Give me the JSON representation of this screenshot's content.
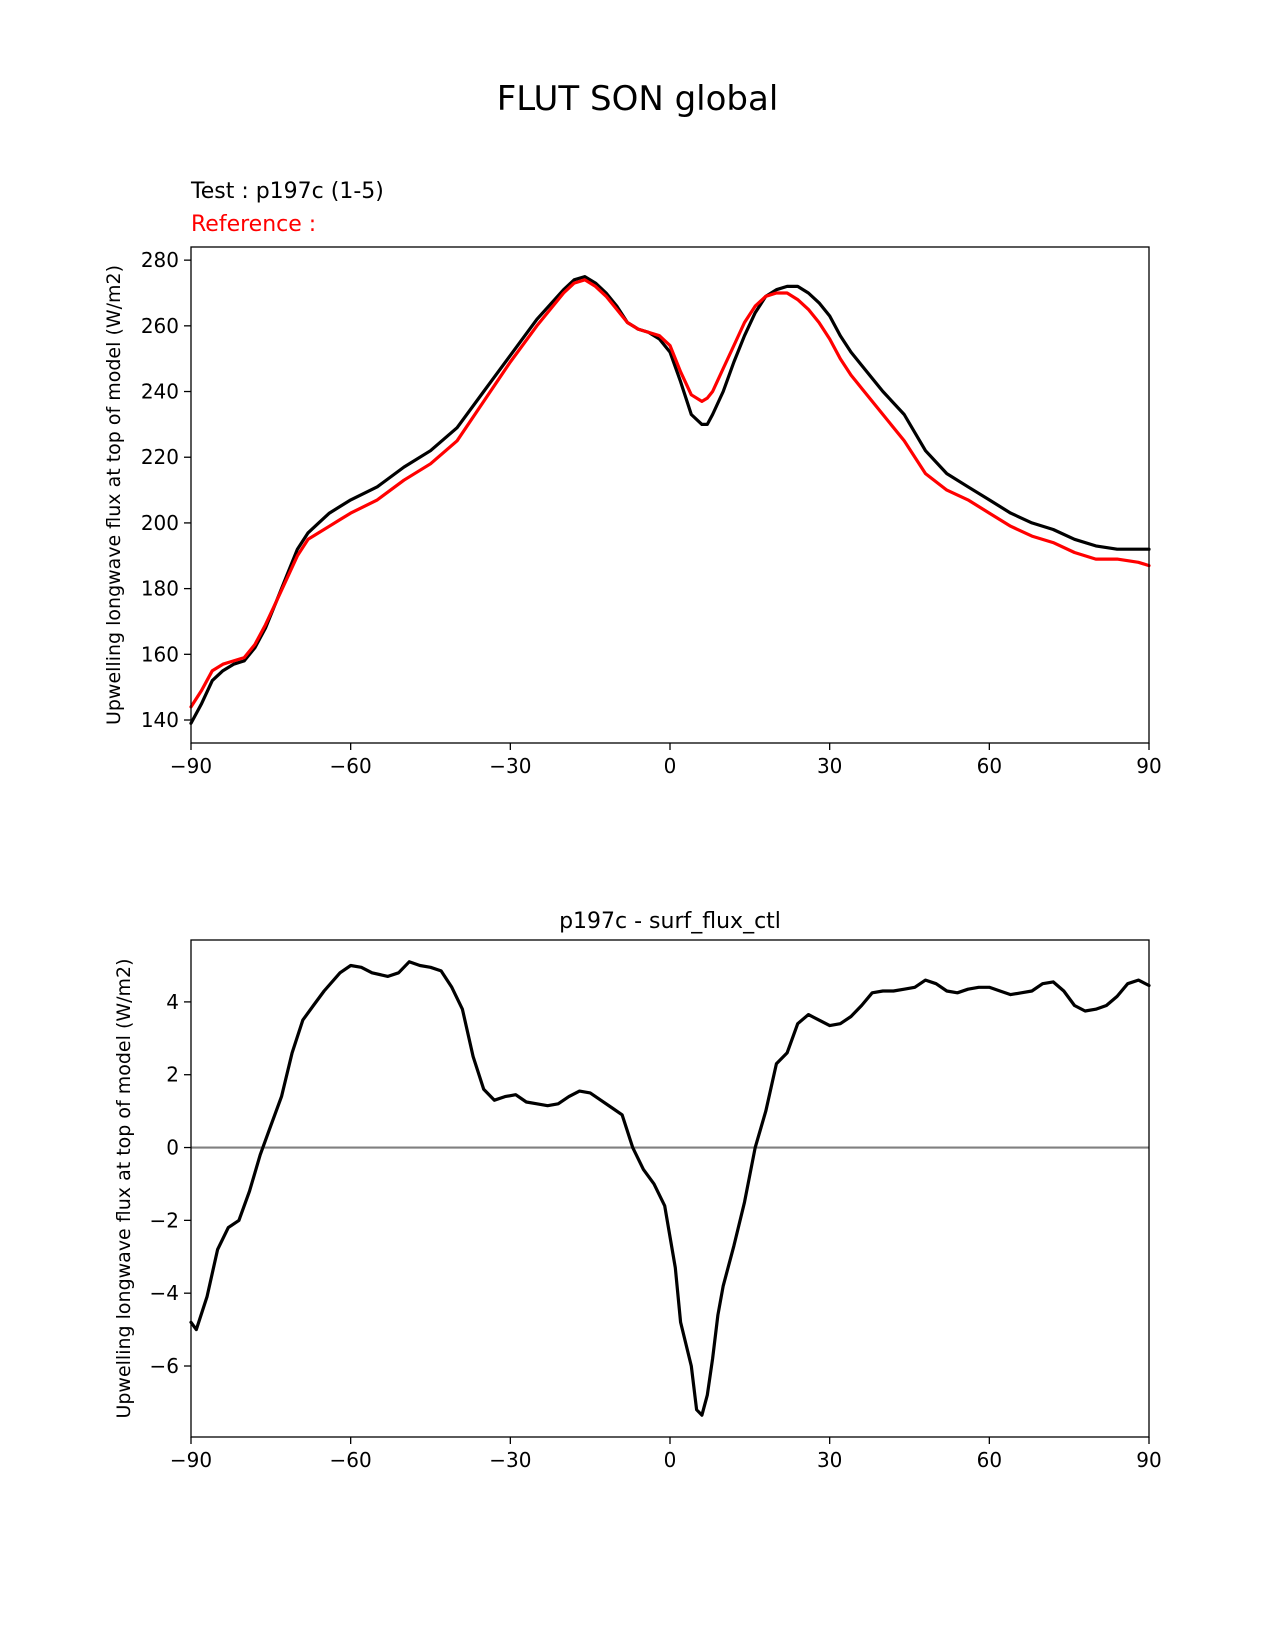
{
  "suptitle": "FLUT SON global",
  "chart_data": [
    {
      "type": "line",
      "title_test": "Test : p197c (1-5)",
      "title_ref": "Reference :",
      "xlabel": "",
      "ylabel": "Upwelling longwave flux at top of model (W/m2)",
      "xlim": [
        -90,
        90
      ],
      "ylim": [
        133,
        284
      ],
      "xticks": [
        -90,
        -60,
        -30,
        0,
        30,
        60,
        90
      ],
      "xtick_labels": [
        "−90",
        "−60",
        "−30",
        "0",
        "30",
        "60",
        "90"
      ],
      "yticks": [
        140,
        160,
        180,
        200,
        220,
        240,
        260,
        280
      ],
      "ytick_labels": [
        "140",
        "160",
        "180",
        "200",
        "220",
        "240",
        "260",
        "280"
      ],
      "grid": false,
      "series": [
        {
          "color": "#000000",
          "x": [
            -90,
            -88,
            -86,
            -84,
            -82,
            -80,
            -78,
            -76,
            -74,
            -72,
            -70,
            -68,
            -66,
            -64,
            -62,
            -60,
            -55,
            -50,
            -45,
            -40,
            -35,
            -30,
            -25,
            -20,
            -18,
            -16,
            -14,
            -12,
            -10,
            -8,
            -6,
            -4,
            -2,
            0,
            2,
            4,
            6,
            7,
            8,
            10,
            12,
            14,
            16,
            18,
            20,
            22,
            24,
            26,
            28,
            30,
            32,
            34,
            36,
            40,
            44,
            48,
            52,
            56,
            60,
            64,
            68,
            72,
            76,
            80,
            84,
            88,
            90
          ],
          "y": [
            139,
            145,
            152,
            155,
            157,
            158,
            162,
            168,
            176,
            184,
            192,
            197,
            200,
            203,
            205,
            207,
            211,
            217,
            222,
            229,
            240,
            251,
            262,
            271,
            274,
            275,
            273,
            270,
            266,
            261,
            259,
            258,
            256,
            252,
            243,
            233,
            230,
            230,
            233,
            240,
            249,
            257,
            264,
            269,
            271,
            272,
            272,
            270,
            267,
            263,
            257,
            252,
            248,
            240,
            233,
            222,
            215,
            211,
            207,
            203,
            200,
            198,
            195,
            193,
            192,
            192,
            192
          ]
        },
        {
          "color": "#ff0000",
          "x": [
            -90,
            -88,
            -86,
            -84,
            -82,
            -80,
            -78,
            -76,
            -74,
            -72,
            -70,
            -68,
            -66,
            -64,
            -62,
            -60,
            -55,
            -50,
            -45,
            -40,
            -35,
            -30,
            -25,
            -20,
            -18,
            -16,
            -14,
            -12,
            -10,
            -8,
            -6,
            -4,
            -2,
            0,
            2,
            4,
            6,
            7,
            8,
            10,
            12,
            14,
            16,
            18,
            20,
            22,
            24,
            26,
            28,
            30,
            32,
            34,
            36,
            40,
            44,
            48,
            52,
            56,
            60,
            64,
            68,
            72,
            76,
            80,
            84,
            88,
            90
          ],
          "y": [
            144,
            149,
            155,
            157,
            158,
            159,
            163,
            169,
            176,
            183,
            190,
            195,
            197,
            199,
            201,
            203,
            207,
            213,
            218,
            225,
            237,
            249,
            260,
            270,
            273,
            274,
            272,
            269,
            265,
            261,
            259,
            258,
            257,
            254,
            246,
            239,
            237,
            238,
            240,
            247,
            254,
            261,
            266,
            269,
            270,
            270,
            268,
            265,
            261,
            256,
            250,
            245,
            241,
            233,
            225,
            215,
            210,
            207,
            203,
            199,
            196,
            194,
            191,
            189,
            189,
            188,
            187
          ]
        }
      ]
    },
    {
      "type": "line",
      "title": "p197c - surf_flux_ctl",
      "xlabel": "",
      "ylabel": "Upwelling longwave flux at top of model (W/m2)",
      "xlim": [
        -90,
        90
      ],
      "ylim": [
        -7.95,
        5.7
      ],
      "xticks": [
        -90,
        -60,
        -30,
        0,
        30,
        60,
        90
      ],
      "xtick_labels": [
        "−90",
        "−60",
        "−30",
        "0",
        "30",
        "60",
        "90"
      ],
      "yticks": [
        -6,
        -4,
        -2,
        0,
        2,
        4
      ],
      "ytick_labels": [
        "−6",
        "−4",
        "−2",
        "0",
        "2",
        "4"
      ],
      "zero_line": {
        "y": 0,
        "color": "#808080"
      },
      "grid": false,
      "series": [
        {
          "color": "#000000",
          "x": [
            -90,
            -89,
            -87,
            -85,
            -83,
            -81,
            -79,
            -77,
            -75,
            -73,
            -71,
            -69,
            -67,
            -65,
            -62,
            -60,
            -58,
            -56,
            -53,
            -51,
            -49,
            -47,
            -45,
            -43,
            -41,
            -39,
            -37,
            -35,
            -33,
            -31,
            -29,
            -27,
            -25,
            -23,
            -21,
            -19,
            -17,
            -15,
            -13,
            -11,
            -9,
            -7,
            -5,
            -3,
            -1,
            1,
            2,
            4,
            5,
            6,
            7,
            8,
            9,
            10,
            12,
            14,
            16,
            18,
            20,
            22,
            24,
            26,
            28,
            30,
            32,
            34,
            36,
            38,
            40,
            42,
            44,
            46,
            48,
            50,
            52,
            54,
            56,
            58,
            60,
            62,
            64,
            66,
            68,
            70,
            72,
            74,
            76,
            78,
            80,
            82,
            84,
            86,
            88,
            90
          ],
          "y": [
            -4.8,
            -5.0,
            -4.1,
            -2.8,
            -2.2,
            -2.0,
            -1.2,
            -0.2,
            0.6,
            1.4,
            2.6,
            3.5,
            3.9,
            4.3,
            4.8,
            5.0,
            4.95,
            4.8,
            4.7,
            4.8,
            5.1,
            5.0,
            4.95,
            4.85,
            4.4,
            3.8,
            2.5,
            1.6,
            1.3,
            1.4,
            1.45,
            1.25,
            1.2,
            1.15,
            1.2,
            1.4,
            1.55,
            1.5,
            1.3,
            1.1,
            0.9,
            0.0,
            -0.6,
            -1.0,
            -1.6,
            -3.3,
            -4.8,
            -6.0,
            -7.2,
            -7.35,
            -6.8,
            -5.8,
            -4.6,
            -3.8,
            -2.7,
            -1.5,
            0.0,
            1.0,
            2.3,
            2.6,
            3.4,
            3.65,
            3.5,
            3.35,
            3.4,
            3.6,
            3.9,
            4.25,
            4.3,
            4.3,
            4.35,
            4.4,
            4.6,
            4.5,
            4.3,
            4.25,
            4.35,
            4.4,
            4.4,
            4.3,
            4.2,
            4.25,
            4.3,
            4.5,
            4.55,
            4.3,
            3.9,
            3.75,
            3.8,
            3.9,
            4.15,
            4.5,
            4.6,
            4.45
          ]
        }
      ]
    }
  ]
}
